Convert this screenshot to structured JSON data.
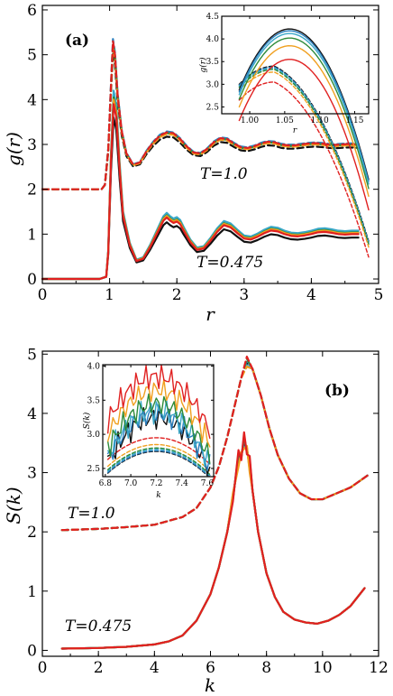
{
  "colors": {
    "black": "#111111",
    "blue": "#2a7fbf",
    "teal": "#3aa8c8",
    "green": "#2e8b3a",
    "orange": "#f0a020",
    "red": "#e02020"
  },
  "chart_data": [
    {
      "id": "gr",
      "type": "line",
      "panel_label": "(a)",
      "xlabel": "r",
      "ylabel": "g(r)",
      "xlim": [
        0,
        5
      ],
      "ylim": [
        -0.1,
        6.1
      ],
      "xticks": [
        "0",
        "1",
        "2",
        "3",
        "4",
        "5"
      ],
      "yticks": [
        "0",
        "1",
        "2",
        "3",
        "4",
        "5",
        "6"
      ],
      "annotations": [
        "T=1.0",
        "T=0.475"
      ],
      "low_T_curve": {
        "x": [
          0,
          0.85,
          0.95,
          0.98,
          1.02,
          1.06,
          1.1,
          1.15,
          1.2,
          1.3,
          1.4,
          1.5,
          1.6,
          1.7,
          1.8,
          1.85,
          1.9,
          1.95,
          2.0,
          2.05,
          2.1,
          2.15,
          2.2,
          2.3,
          2.4,
          2.5,
          2.6,
          2.7,
          2.8,
          2.9,
          3.0,
          3.1,
          3.2,
          3.3,
          3.4,
          3.5,
          3.6,
          3.7,
          3.8,
          3.9,
          4.0,
          4.1,
          4.2,
          4.3,
          4.4,
          4.5,
          4.6,
          4.7
        ],
        "y": [
          0,
          0,
          0.05,
          0.6,
          2.6,
          3.9,
          3.6,
          2.4,
          1.4,
          0.75,
          0.4,
          0.45,
          0.7,
          1.0,
          1.3,
          1.37,
          1.3,
          1.25,
          1.28,
          1.22,
          1.08,
          0.95,
          0.82,
          0.65,
          0.68,
          0.85,
          1.05,
          1.2,
          1.15,
          1.02,
          0.9,
          0.88,
          0.94,
          1.02,
          1.08,
          1.06,
          1.0,
          0.96,
          0.95,
          0.97,
          1.0,
          1.04,
          1.05,
          1.03,
          1.0,
          0.99,
          1.0,
          1.0
        ]
      },
      "high_T_curve": {
        "x": [
          0,
          0.88,
          0.93,
          0.98,
          1.02,
          1.05,
          1.08,
          1.12,
          1.18,
          1.25,
          1.35,
          1.45,
          1.55,
          1.65,
          1.75,
          1.85,
          1.95,
          2.05,
          2.15,
          2.25,
          2.35,
          2.45,
          2.55,
          2.65,
          2.75,
          2.85,
          2.95,
          3.05,
          3.15,
          3.25,
          3.35,
          3.45,
          3.55,
          3.65,
          3.75,
          3.85,
          3.95,
          4.05,
          4.15,
          4.25,
          4.35,
          4.45,
          4.55,
          4.7
        ],
        "y": [
          2,
          2,
          2.1,
          2.9,
          4.3,
          5.3,
          5.0,
          4.1,
          3.3,
          2.8,
          2.55,
          2.6,
          2.85,
          3.05,
          3.2,
          3.27,
          3.25,
          3.12,
          2.95,
          2.82,
          2.8,
          2.9,
          3.05,
          3.14,
          3.12,
          3.02,
          2.94,
          2.92,
          2.96,
          3.02,
          3.06,
          3.05,
          3.0,
          2.98,
          2.98,
          3.0,
          3.02,
          3.03,
          3.02,
          3.0,
          2.99,
          3.0,
          3.01,
          3.0
        ]
      },
      "low_T_peaks": [
        3.6,
        3.95,
        4.2,
        4.05,
        4.0,
        3.9
      ],
      "high_T_peaks": [
        5.05,
        5.35,
        5.3,
        5.25,
        5.2,
        5.3
      ],
      "inset": {
        "xlabel": "r",
        "ylabel": "g(r)",
        "xlim": [
          0.96,
          1.17
        ],
        "ylim": [
          2.35,
          4.5
        ],
        "xticks": [
          "1.00",
          "1.05",
          "1.10",
          "1.15"
        ],
        "yticks": [
          "2.5",
          "3.0",
          "3.5",
          "4.0",
          "4.5"
        ],
        "solid_peaks": [
          {
            "color": "black",
            "peak": 4.22
          },
          {
            "color": "blue",
            "peak": 4.18
          },
          {
            "color": "teal",
            "peak": 4.12
          },
          {
            "color": "green",
            "peak": 4.02
          },
          {
            "color": "orange",
            "peak": 3.85
          },
          {
            "color": "red",
            "peak": 3.55
          }
        ],
        "dashed_peaks": [
          {
            "color": "black",
            "peak": 3.4
          },
          {
            "color": "blue",
            "peak": 3.38
          },
          {
            "color": "teal",
            "peak": 3.36
          },
          {
            "color": "green",
            "peak": 3.33
          },
          {
            "color": "orange",
            "peak": 3.27
          },
          {
            "color": "red",
            "peak": 3.05
          }
        ]
      }
    },
    {
      "id": "sk",
      "type": "line",
      "panel_label": "(b)",
      "xlabel": "k",
      "ylabel": "S(k)",
      "xlim": [
        0,
        12
      ],
      "ylim": [
        -0.1,
        5.05
      ],
      "xticks": [
        "0",
        "2",
        "4",
        "6",
        "8",
        "10",
        "12"
      ],
      "yticks": [
        "0",
        "1",
        "2",
        "3",
        "4",
        "5"
      ],
      "annotations": [
        "T=1.0",
        "T=0.475"
      ],
      "low_T_curve": {
        "x": [
          0.7,
          2,
          3,
          4,
          4.5,
          5,
          5.5,
          6,
          6.3,
          6.6,
          6.8,
          7.0,
          7.1,
          7.2,
          7.3,
          7.4,
          7.5,
          7.7,
          8.0,
          8.3,
          8.6,
          9.0,
          9.4,
          9.8,
          10.2,
          10.6,
          11.0,
          11.5
        ],
        "y": [
          0.03,
          0.04,
          0.06,
          0.1,
          0.15,
          0.25,
          0.5,
          0.95,
          1.4,
          2.0,
          2.6,
          3.2,
          3.3,
          3.5,
          3.4,
          3.1,
          2.7,
          2.0,
          1.3,
          0.9,
          0.65,
          0.52,
          0.47,
          0.45,
          0.5,
          0.6,
          0.75,
          1.05
        ]
      },
      "high_T_curve": {
        "x": [
          0.7,
          2,
          3,
          4,
          5,
          5.5,
          6,
          6.3,
          6.6,
          6.9,
          7.1,
          7.3,
          7.5,
          7.8,
          8.1,
          8.4,
          8.8,
          9.2,
          9.6,
          10.0,
          10.5,
          11.0,
          11.6
        ],
        "y": [
          2.03,
          2.05,
          2.08,
          2.12,
          2.25,
          2.4,
          2.75,
          3.1,
          3.6,
          4.2,
          4.6,
          4.85,
          4.75,
          4.3,
          3.75,
          3.3,
          2.9,
          2.65,
          2.55,
          2.55,
          2.65,
          2.75,
          2.95
        ]
      },
      "inset": {
        "xlabel": "k",
        "ylabel": "S(k)",
        "xlim": [
          6.78,
          7.65
        ],
        "ylim": [
          2.38,
          4.02
        ],
        "xticks": [
          "6.8",
          "7.0",
          "7.2",
          "7.4",
          "7.6"
        ],
        "yticks": [
          "2.5",
          "3.0",
          "3.5",
          "4.0"
        ],
        "solid_peaks": [
          {
            "color": "black",
            "peak": 3.25
          },
          {
            "color": "blue",
            "peak": 3.3
          },
          {
            "color": "teal",
            "peak": 3.35
          },
          {
            "color": "green",
            "peak": 3.45
          },
          {
            "color": "orange",
            "peak": 3.65
          },
          {
            "color": "red",
            "peak": 3.85
          }
        ],
        "dashed_peaks": [
          {
            "color": "black",
            "peak": 2.75
          },
          {
            "color": "blue",
            "peak": 2.76
          },
          {
            "color": "teal",
            "peak": 2.78
          },
          {
            "color": "green",
            "peak": 2.8
          },
          {
            "color": "orange",
            "peak": 2.85
          },
          {
            "color": "red",
            "peak": 2.95
          }
        ]
      }
    }
  ]
}
